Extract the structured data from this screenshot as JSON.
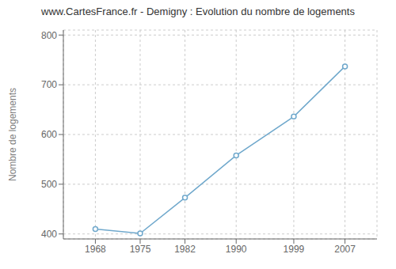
{
  "chart_data": {
    "type": "line",
    "title": "www.CartesFrance.fr - Demigny : Evolution du nombre de logements",
    "ylabel": "Nombre de logements",
    "x": [
      1968,
      1975,
      1982,
      1990,
      1999,
      2007
    ],
    "values": [
      410,
      401,
      473,
      558,
      636,
      737
    ],
    "color": "#6fa8cc",
    "marker": "circle",
    "xlim": [
      1963,
      2012
    ],
    "ylim": [
      390,
      810
    ],
    "xticks": [
      1968,
      1975,
      1982,
      1990,
      1999,
      2007
    ],
    "yticks": [
      400,
      500,
      600,
      700,
      800
    ],
    "grid": true
  }
}
